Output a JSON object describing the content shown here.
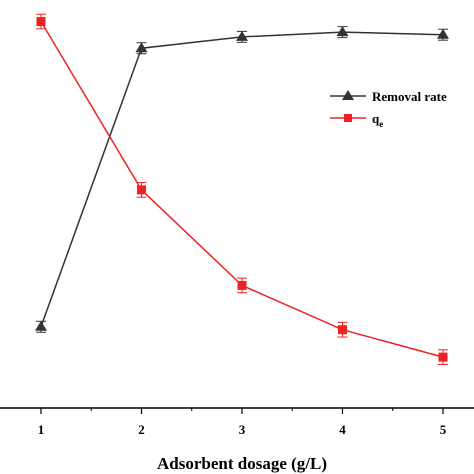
{
  "chart_data": {
    "type": "line",
    "xlabel": "Adsorbent dosage (g/L)",
    "ylabel": "",
    "x": [
      1,
      2,
      3,
      4,
      5
    ],
    "xlim": [
      0.3,
      5.3
    ],
    "xticks": [
      "1",
      "2",
      "3",
      "4",
      "5"
    ],
    "ylim": [
      0,
      100
    ],
    "grid": false,
    "legend_position": "top-right",
    "series": [
      {
        "name": "Removal rate",
        "marker": "triangle",
        "color": "#333333",
        "values": [
          14.0,
          90.1,
          93.2,
          94.5,
          93.8
        ],
        "errors": [
          1.5,
          1.5,
          1.5,
          1.5,
          1.5
        ]
      },
      {
        "name": "q",
        "name_subscript": "e",
        "marker": "square",
        "color": "#ee2222",
        "values": [
          97.4,
          51.4,
          25.3,
          13.2,
          5.7
        ],
        "errors": [
          2.0,
          2.0,
          2.0,
          2.0,
          2.0
        ]
      }
    ]
  }
}
